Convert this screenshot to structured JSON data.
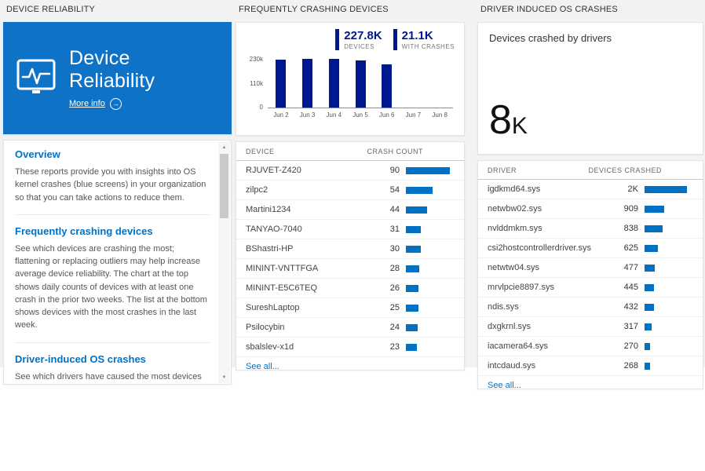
{
  "colors": {
    "accent": "#0072c6",
    "navy": "#00188f",
    "tile_blue": "#0e72c6",
    "page_bg": "#f2f2f2"
  },
  "chart_data": {
    "type": "bar",
    "title": "Daily counts of devices with at least one crash",
    "categories": [
      "Jun 2",
      "Jun 3",
      "Jun 4",
      "Jun 5",
      "Jun 6",
      "Jun 7",
      "Jun 8"
    ],
    "values": [
      226000,
      230000,
      229000,
      224000,
      204000,
      0,
      0
    ],
    "xlabel": "",
    "ylabel": "",
    "ylim": [
      0,
      230000
    ],
    "yticks": [
      "230k",
      "110k",
      "0"
    ],
    "grid": false,
    "legend": false,
    "bar_color": "#00188f"
  },
  "left": {
    "header": "DEVICE RELIABILITY",
    "tile": {
      "title": "Device Reliability",
      "more_info": "More info",
      "arrow": "→"
    },
    "sections": [
      {
        "heading": "Overview",
        "body": "These reports provide you with insights into OS kernel crashes (blue screens) in your organization so that you can take actions to reduce them."
      },
      {
        "heading": "Frequently crashing devices",
        "body": "See which devices are crashing the most; flattening or replacing outliers may help increase average device reliability. The chart at the top shows daily counts of devices with at least one crash in the prior two weeks. The list at the bottom shows devices with the most crashes in the last week."
      },
      {
        "heading": "Driver-induced OS crashes",
        "body": "See which drivers have caused the most devices to crash in the last two weeks; upgrading or replacing these drivers"
      }
    ]
  },
  "middle": {
    "header": "FREQUENTLY CRASHING DEVICES",
    "stats": [
      {
        "value": "227.8K",
        "label": "DEVICES"
      },
      {
        "value": "21.1K",
        "label": "WITH CRASHES"
      }
    ],
    "table": {
      "name_header": "DEVICE",
      "value_header": "CRASH COUNT",
      "rows": [
        {
          "name": "RJUVET-Z420",
          "value": "90",
          "numeric": 90
        },
        {
          "name": "zilpc2",
          "value": "54",
          "numeric": 54
        },
        {
          "name": "Martini1234",
          "value": "44",
          "numeric": 44
        },
        {
          "name": "TANYAO-7040",
          "value": "31",
          "numeric": 31
        },
        {
          "name": "BShastri-HP",
          "value": "30",
          "numeric": 30
        },
        {
          "name": "MININT-VNTTFGA",
          "value": "28",
          "numeric": 28
        },
        {
          "name": "MININT-E5C6TEQ",
          "value": "26",
          "numeric": 26
        },
        {
          "name": "SureshLaptop",
          "value": "25",
          "numeric": 25
        },
        {
          "name": "Psilocybin",
          "value": "24",
          "numeric": 24
        },
        {
          "name": "sbalslev-x1d",
          "value": "23",
          "numeric": 23
        }
      ],
      "see_all": "See all..."
    }
  },
  "right": {
    "header": "DRIVER INDUCED OS CRASHES",
    "tile": {
      "caption": "Devices crashed by drivers",
      "big_value": "8",
      "big_unit": "K"
    },
    "table": {
      "name_header": "DRIVER",
      "value_header": "DEVICES CRASHED",
      "rows": [
        {
          "name": "igdkmd64.sys",
          "value": "2K",
          "numeric": 2000
        },
        {
          "name": "netwbw02.sys",
          "value": "909",
          "numeric": 909
        },
        {
          "name": "nvlddmkm.sys",
          "value": "838",
          "numeric": 838
        },
        {
          "name": "csi2hostcontrollerdriver.sys",
          "value": "625",
          "numeric": 625
        },
        {
          "name": "netwtw04.sys",
          "value": "477",
          "numeric": 477
        },
        {
          "name": "mrvlpcie8897.sys",
          "value": "445",
          "numeric": 445
        },
        {
          "name": "ndis.sys",
          "value": "432",
          "numeric": 432
        },
        {
          "name": "dxgkrnl.sys",
          "value": "317",
          "numeric": 317
        },
        {
          "name": "iacamera64.sys",
          "value": "270",
          "numeric": 270
        },
        {
          "name": "intcdaud.sys",
          "value": "268",
          "numeric": 268
        }
      ],
      "see_all": "See all..."
    }
  }
}
